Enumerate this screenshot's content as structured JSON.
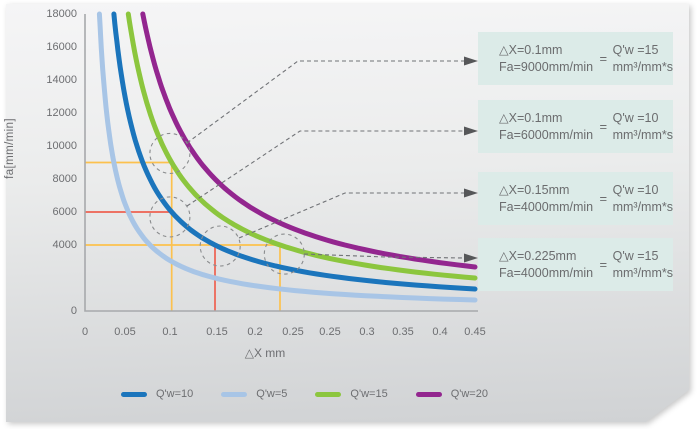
{
  "chart_data": {
    "type": "line",
    "title": "",
    "xlabel": "△X mm",
    "ylabel": "fa[mm/min]",
    "xlim": [
      0,
      0.45
    ],
    "ylim": [
      0,
      18000
    ],
    "grid": false,
    "legend_position": "bottom",
    "x_tick_labels": [
      "0",
      "0.05",
      "0.1",
      "0.15",
      "0.2",
      "0.25",
      "0.25",
      "0.3",
      "0.35",
      "0.4",
      "0.45"
    ],
    "y_ticks": {
      "values": [
        0,
        4000,
        6000,
        8000,
        10000,
        12000,
        14000,
        16000,
        18000
      ],
      "labels": [
        "0",
        "4000",
        "6000",
        "8000",
        "10000",
        "12000",
        "14000",
        "16000",
        "18000"
      ]
    },
    "series": [
      {
        "name": "Q'w=5",
        "qw": 5,
        "color": "#a8c5e6",
        "formula": "fa = 60*5/dX",
        "points": [
          {
            "x": 0.1,
            "fa": 3000
          },
          {
            "x": 0.3,
            "fa": 1000
          }
        ]
      },
      {
        "name": "Q'w=10",
        "qw": 10,
        "color": "#1b75bc",
        "formula": "fa = 60*10/dX",
        "points": [
          {
            "x": 0.1,
            "fa": 6000
          },
          {
            "x": 0.15,
            "fa": 4000
          }
        ]
      },
      {
        "name": "Q'w=15",
        "qw": 15,
        "color": "#8cc63e",
        "formula": "fa = 60*15/dX",
        "points": [
          {
            "x": 0.1,
            "fa": 9000
          },
          {
            "x": 0.225,
            "fa": 4000
          }
        ]
      },
      {
        "name": "Q'w=20",
        "qw": 20,
        "color": "#93268f",
        "formula": "fa = 60*20/dX",
        "points": [
          {
            "x": 0.2,
            "fa": 6000
          },
          {
            "x": 0.3,
            "fa": 4000
          }
        ]
      }
    ],
    "legend": [
      {
        "label": "Q'w=10",
        "color": "#1b75bc"
      },
      {
        "label": "Q'w=5",
        "color": "#a8c5e6"
      },
      {
        "label": "Q'w=15",
        "color": "#8cc63e"
      },
      {
        "label": "Q'w=20",
        "color": "#93268f"
      }
    ],
    "guides": [
      {
        "name": "guide-fa9000-yellow",
        "color": "#fcc14e",
        "points": [
          [
            0,
            9000
          ],
          [
            0.1,
            9000
          ],
          [
            0.1,
            0
          ]
        ]
      },
      {
        "name": "guide-fa6000-red",
        "color": "#ee6150",
        "points": [
          [
            0,
            6000
          ],
          [
            0.1,
            6000
          ]
        ]
      },
      {
        "name": "guide-fa4000-yellow",
        "color": "#fcc14e",
        "points": [
          [
            0,
            4000
          ],
          [
            0.225,
            4000
          ],
          [
            0.225,
            0
          ]
        ]
      },
      {
        "name": "guide-dx015-red",
        "color": "#ee6150",
        "points": [
          [
            0.15,
            4000
          ],
          [
            0.15,
            0
          ]
        ]
      }
    ],
    "highlights": [
      {
        "x": 0.098,
        "fa": 9550
      },
      {
        "x": 0.098,
        "fa": 5700
      },
      {
        "x": 0.156,
        "fa": 3940
      },
      {
        "x": 0.23,
        "fa": 3450
      }
    ]
  },
  "annotations": [
    {
      "dx": "△X=0.1mm",
      "fa": "Fa=9000mm/min",
      "equals": "=",
      "qw": "Q'w =15",
      "unit": "mm³/mm*s"
    },
    {
      "dx": "△X=0.1mm",
      "fa": "Fa=6000mm/min",
      "equals": "=",
      "qw": "Q'w =10",
      "unit": "mm³/mm*s"
    },
    {
      "dx": "△X=0.15mm",
      "fa": "Fa=4000mm/min",
      "equals": "=",
      "qw": "Q'w =10",
      "unit": "mm³/mm*s"
    },
    {
      "dx": "△X=0.225mm",
      "fa": "Fa=4000mm/min",
      "equals": "=",
      "qw": "Q'w =15",
      "unit": "mm³/mm*s"
    }
  ],
  "colors": {
    "panel_top": "#f5f5f6",
    "panel_bottom": "#d0d2d4",
    "axis": "#a7a9ac",
    "text": "#6d6e71",
    "annotation_box_bg": "#dcebe8",
    "connector": "#707276",
    "highlight_circle": "#8a8c8e"
  }
}
